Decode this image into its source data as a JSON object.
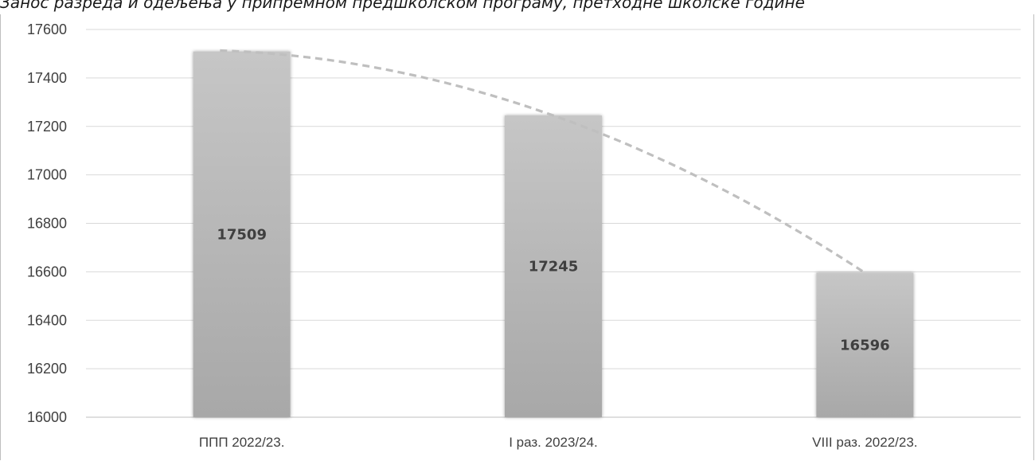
{
  "caption": "Занос разреда и одељења у припремном предшколском програму, претходне школске године",
  "chart_data": {
    "type": "bar",
    "categories": [
      "ППП 2022/23.",
      "I раз. 2023/24.",
      "VIII раз. 2022/23."
    ],
    "values": [
      17509,
      17245,
      16596
    ],
    "yticks": [
      16000,
      16200,
      16400,
      16600,
      16800,
      17000,
      17200,
      17400,
      17600
    ],
    "ylim": [
      16000,
      17600
    ],
    "grid": true,
    "trendline": "polynomial, dashed",
    "bar_color": "#c0c0c0",
    "grid_color": "#d9d9d9",
    "trend_color": "#bfbfbf"
  }
}
